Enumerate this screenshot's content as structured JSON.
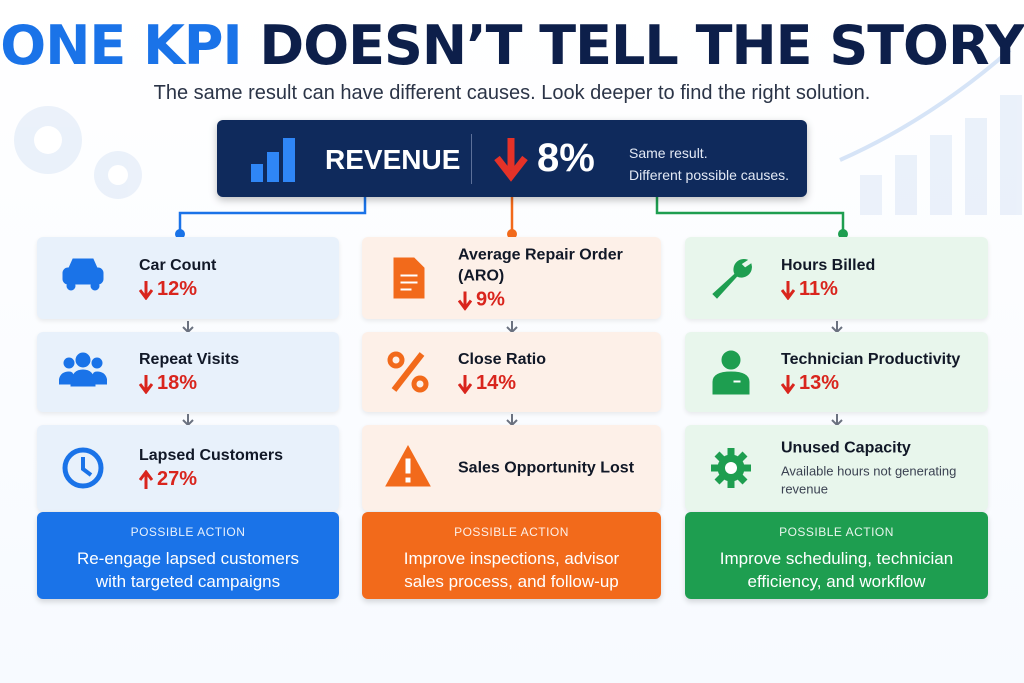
{
  "header": {
    "title_highlight": "ONE KPI",
    "title_rest": "DOESN’T TELL THE STORY",
    "subtitle": "The same result can have different causes. Look deeper to find the right solution."
  },
  "kpi": {
    "label": "REVENUE",
    "change": "8%",
    "note_line1": "Same result.",
    "note_line2": "Different possible causes."
  },
  "columns": [
    {
      "items": [
        {
          "label": "Car Count",
          "change": "12%"
        },
        {
          "label": "Repeat Visits",
          "change": "18%"
        },
        {
          "label": "Lapsed Customers",
          "change": "27%"
        }
      ],
      "action": {
        "heading": "POSSIBLE ACTION",
        "line1": "Re-engage lapsed customers",
        "line2": "with targeted campaigns"
      }
    },
    {
      "items": [
        {
          "label": "Average Repair Order (ARO)",
          "change": "9%"
        },
        {
          "label": "Close Ratio",
          "change": "14%"
        },
        {
          "label": "Sales Opportunity Lost"
        }
      ],
      "action": {
        "heading": "POSSIBLE ACTION",
        "line1": "Improve inspections, advisor",
        "line2": "sales process, and follow-up"
      }
    },
    {
      "items": [
        {
          "label": "Hours Billed",
          "change": "11%"
        },
        {
          "label": "Technician Productivity",
          "change": "13%"
        },
        {
          "label": "Unused Capacity",
          "description": "Available hours not generating revenue"
        }
      ],
      "action": {
        "heading": "POSSIBLE ACTION",
        "line1": "Improve scheduling, technician",
        "line2": "efficiency, and workflow"
      }
    }
  ]
}
